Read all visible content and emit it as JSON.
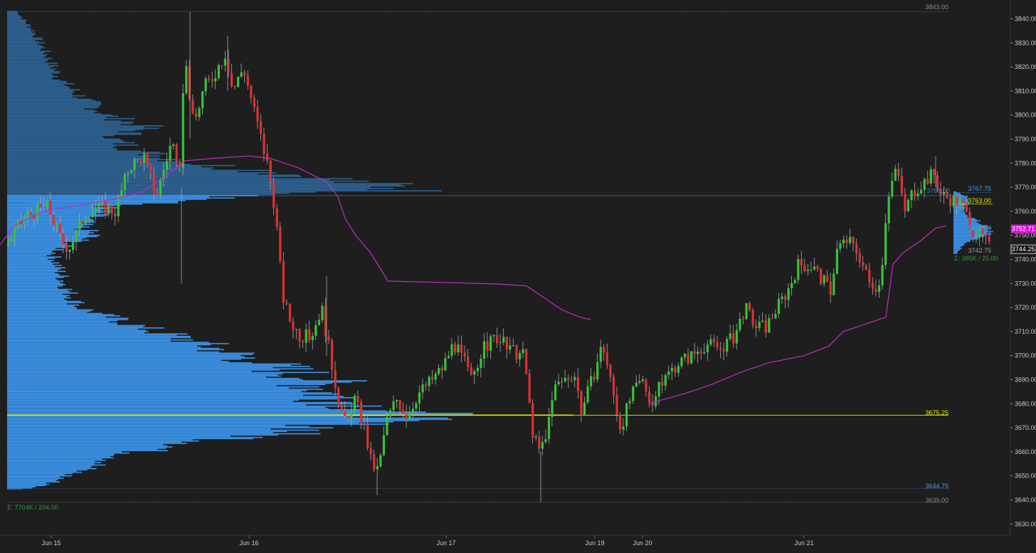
{
  "chart_data": {
    "type": "candlestick",
    "y_axis": {
      "range": [
        3628,
        3848
      ],
      "ticks": [
        "3840.00",
        "3830.00",
        "3820.00",
        "3810.00",
        "3800.00",
        "3790.00",
        "3780.00",
        "3770.00",
        "3760.00",
        "3750.00",
        "3740.00",
        "3730.00",
        "3720.00",
        "3710.00",
        "3700.00",
        "3690.00",
        "3680.00",
        "3670.00",
        "3660.00",
        "3650.00",
        "3640.00",
        "3630.00"
      ],
      "tick_values": [
        3840,
        3830,
        3820,
        3810,
        3800,
        3790,
        3780,
        3770,
        3760,
        3750,
        3740,
        3730,
        3720,
        3710,
        3700,
        3690,
        3680,
        3670,
        3660,
        3650,
        3640,
        3630
      ],
      "current_price_label": "3744.25",
      "current_price": 3744.25,
      "vwap_label": "3752.71",
      "vwap_value": 3752.71
    },
    "x_axis": {
      "labels": [
        "Jun 15",
        "Jun 16",
        "Jun 17",
        "Jun 19",
        "Jun 20",
        "Jun 21"
      ]
    },
    "levels": [
      {
        "label": "3843.00",
        "value": 3843.0,
        "color": "#8a8a8a"
      },
      {
        "label": "3675.25",
        "value": 3675.25,
        "color": "#e8e800"
      },
      {
        "label": "3644.75",
        "value": 3644.75,
        "color": "#4a9ae8"
      },
      {
        "label": "3639.00",
        "value": 3639.0,
        "color": "#8a8a8a"
      }
    ],
    "session_profile_levels": [
      {
        "label": "3767.75",
        "value": 3767.75,
        "color": "#4a9ae8"
      },
      {
        "label": "3766.00",
        "value": 3766.0,
        "color": "#4a9ae8"
      },
      {
        "label": "3763.00",
        "value": 3763.0,
        "color": "#e8e800"
      },
      {
        "label": "3751.50",
        "value": 3751.5,
        "color": "#4a9ae8"
      },
      {
        "label": "3742.75",
        "value": 3742.75,
        "color": "#9a9a9a"
      }
    ],
    "profile_summary_main": "Σ: 7704K / 204.00",
    "profile_summary_session": "Σ: 385K / 25.00",
    "vwap_curve": [
      [
        0,
        3746
      ],
      [
        20,
        3754
      ],
      [
        60,
        3760
      ],
      [
        120,
        3763
      ],
      [
        160,
        3765
      ],
      [
        200,
        3768
      ],
      [
        230,
        3774
      ],
      [
        260,
        3781
      ],
      [
        300,
        3782
      ],
      [
        350,
        3783
      ],
      [
        380,
        3782
      ],
      [
        420,
        3778
      ],
      [
        460,
        3772
      ],
      [
        475,
        3766
      ],
      [
        485,
        3757
      ],
      [
        500,
        3750
      ],
      [
        520,
        3743
      ],
      [
        535,
        3736
      ],
      [
        545,
        3731
      ],
      [
        570,
        3730.8
      ],
      [
        640,
        3730.3
      ],
      [
        700,
        3729.8
      ],
      [
        740,
        3729
      ],
      [
        760,
        3725
      ],
      [
        790,
        3719
      ],
      [
        815,
        3716
      ],
      [
        830,
        3715
      ]
    ],
    "vwap_curve_2": [
      [
        910,
        3680
      ],
      [
        960,
        3684
      ],
      [
        1000,
        3688
      ],
      [
        1040,
        3693
      ],
      [
        1080,
        3697
      ],
      [
        1130,
        3700
      ],
      [
        1165,
        3704
      ],
      [
        1185,
        3710
      ],
      [
        1215,
        3713
      ],
      [
        1245,
        3716
      ],
      [
        1255,
        3738
      ],
      [
        1270,
        3743
      ],
      [
        1295,
        3748
      ],
      [
        1315,
        3753
      ],
      [
        1330,
        3754
      ]
    ],
    "volume_profile_anchor": {
      "x_start": 10,
      "session_x_start": 1340
    },
    "colors": {
      "background": "#1e1e1e",
      "up_candle": "#35c535",
      "down_candle": "#e03030",
      "profile_main": "#3a8ee0",
      "profile_dim": "#2c5f8e",
      "vwap": "#c02cc0",
      "axis_text": "#c8c8c8",
      "vwap_tag": "#e010e0",
      "price_tag_bg": "#101010"
    }
  }
}
